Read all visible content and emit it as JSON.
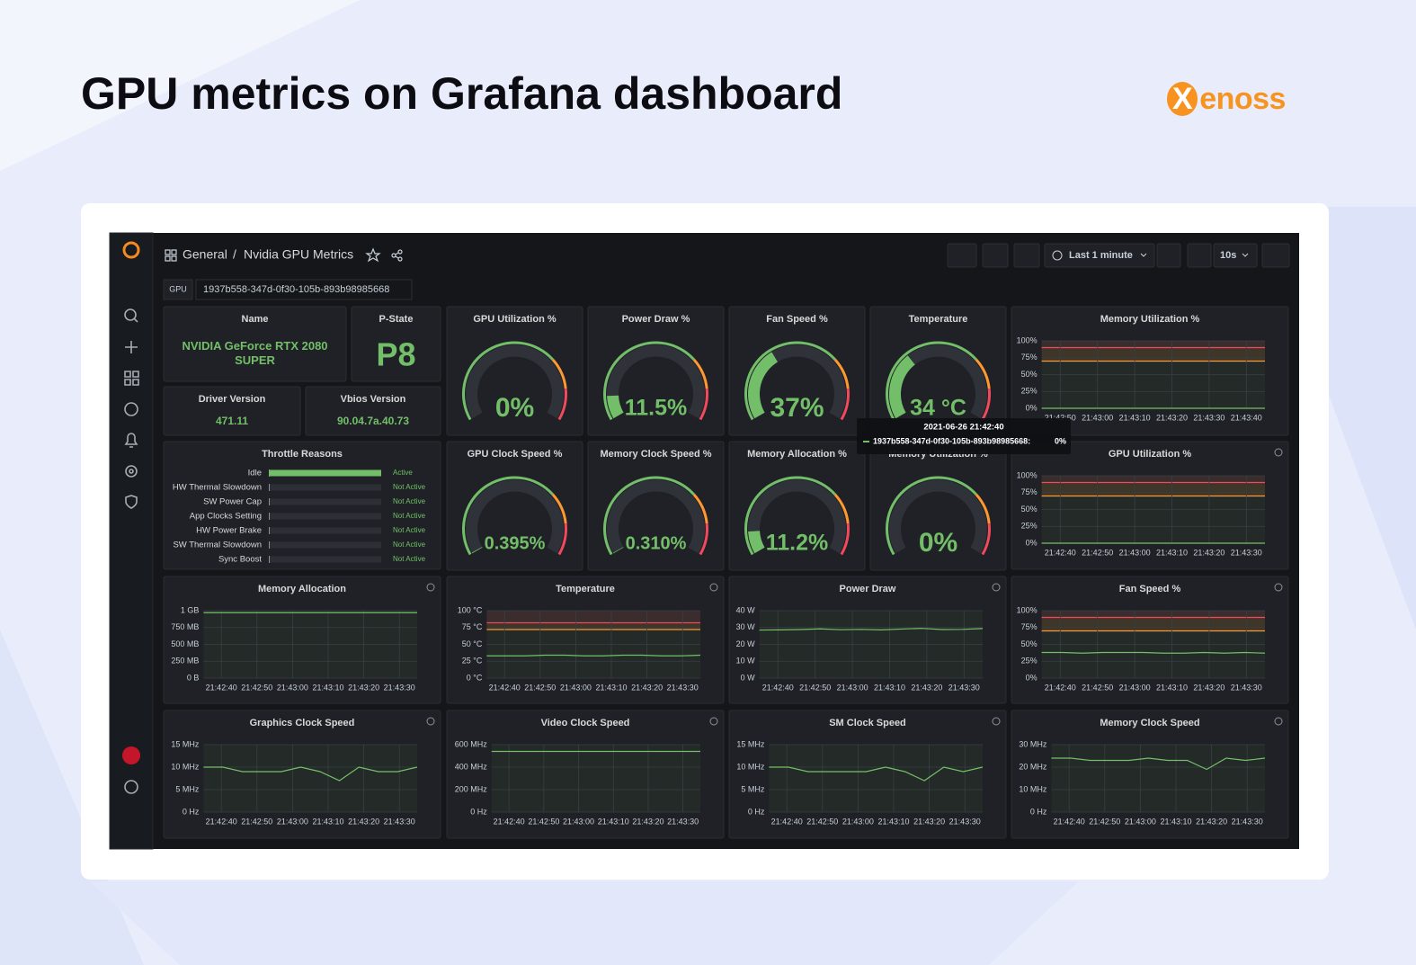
{
  "header": {
    "title": "GPU metrics on Grafana dashboard",
    "brand": "Xenoss"
  },
  "toolbar": {
    "breadcrumb": [
      "General",
      "/",
      "Nvidia GPU Metrics"
    ],
    "time_range": "Last 1 minute",
    "refresh": "10s"
  },
  "variable": {
    "label": "GPU",
    "value": "1937b558-347d-0f30-105b-893b98985668"
  },
  "series_color": "#73bf69",
  "stats": [
    {
      "title": "Name",
      "value": "NVIDIA GeForce RTX 2080 SUPER"
    },
    {
      "title": "P-State",
      "value": "P8"
    },
    {
      "title": "Driver Version",
      "value": "471.11"
    },
    {
      "title": "Vbios Version",
      "value": "90.04.7a.40.73"
    }
  ],
  "gauge_range": [
    0,
    100
  ],
  "gauge_thresholds": [
    {
      "value": 70,
      "color": "#ff9830"
    },
    {
      "value": 85,
      "color": "#f2495c"
    }
  ],
  "gauges": [
    {
      "title": "GPU Utilization %",
      "value": 0,
      "label": "0%"
    },
    {
      "title": "Power Draw %",
      "value": 11.5,
      "label": "11.5%"
    },
    {
      "title": "Fan Speed %",
      "value": 37,
      "label": "37%"
    },
    {
      "title": "Temperature",
      "value": 34,
      "label": "34 °C"
    },
    {
      "title": "GPU Clock Speed %",
      "value": 0.395,
      "label": "0.395%"
    },
    {
      "title": "Memory Clock Speed %",
      "value": 0.31,
      "label": "0.310%"
    },
    {
      "title": "Memory Allocation %",
      "value": 11.2,
      "label": "11.2%"
    },
    {
      "title": "Memory Utilization %",
      "value": 0,
      "label": "0%"
    }
  ],
  "throttle": {
    "title": "Throttle Reasons",
    "range": [
      0,
      1
    ],
    "rows": [
      {
        "name": "Idle",
        "status": "Active",
        "value": 1
      },
      {
        "name": "HW Thermal Slowdown",
        "status": "Not Active",
        "value": 0
      },
      {
        "name": "SW Power Cap",
        "status": "Not Active",
        "value": 0
      },
      {
        "name": "App Clocks Setting",
        "status": "Not Active",
        "value": 0
      },
      {
        "name": "HW Power Brake",
        "status": "Not Active",
        "value": 0
      },
      {
        "name": "SW Thermal Slowdown",
        "status": "Not Active",
        "value": 0
      },
      {
        "name": "Sync Boost",
        "status": "Not Active",
        "value": 0
      }
    ]
  },
  "tooltip": {
    "time": "2021-06-26 21:42:40",
    "series": "1937b558-347d-0f30-105b-893b98985668:",
    "value": "0%"
  },
  "graphs": [
    {
      "title": "Memory Utilization %",
      "ylim": [
        0,
        100
      ],
      "yticks": [
        {
          "value": 0,
          "label": "0%"
        },
        {
          "value": 25,
          "label": "25%"
        },
        {
          "value": 50,
          "label": "50%"
        },
        {
          "value": 75,
          "label": "75%"
        },
        {
          "value": 100,
          "label": "100%"
        }
      ],
      "xticks": [
        "21:42:50",
        "21:43:00",
        "21:43:10",
        "21:43:20",
        "21:43:30",
        "21:43:40"
      ],
      "values": [
        0,
        0,
        0,
        0,
        0,
        0,
        0,
        0,
        0,
        0,
        0,
        0
      ],
      "thresholds": [
        {
          "value": 70,
          "color": "#ff9830"
        },
        {
          "value": 90,
          "color": "#f2495c"
        }
      ]
    },
    {
      "title": "GPU Utilization %",
      "ylim": [
        0,
        100
      ],
      "yticks": [
        {
          "value": 0,
          "label": "0%"
        },
        {
          "value": 25,
          "label": "25%"
        },
        {
          "value": 50,
          "label": "50%"
        },
        {
          "value": 75,
          "label": "75%"
        },
        {
          "value": 100,
          "label": "100%"
        }
      ],
      "xticks": [
        "21:42:40",
        "21:42:50",
        "21:43:00",
        "21:43:10",
        "21:43:20",
        "21:43:30"
      ],
      "values": [
        0,
        0,
        0,
        0,
        0,
        0,
        0,
        0,
        0,
        0,
        0,
        0
      ],
      "thresholds": [
        {
          "value": 70,
          "color": "#ff9830"
        },
        {
          "value": 90,
          "color": "#f2495c"
        }
      ]
    },
    {
      "title": "Memory Allocation",
      "ylim": [
        0,
        1000
      ],
      "yticks": [
        {
          "value": 0,
          "label": "0 B"
        },
        {
          "value": 250,
          "label": "250 MB"
        },
        {
          "value": 500,
          "label": "500 MB"
        },
        {
          "value": 750,
          "label": "750 MB"
        },
        {
          "value": 1000,
          "label": "1 GB"
        }
      ],
      "xticks": [
        "21:42:40",
        "21:42:50",
        "21:43:00",
        "21:43:10",
        "21:43:20",
        "21:43:30"
      ],
      "values": [
        970,
        970,
        970,
        970,
        970,
        970,
        970,
        970,
        970,
        970,
        970,
        970
      ]
    },
    {
      "title": "Temperature",
      "ylim": [
        0,
        100
      ],
      "yticks": [
        {
          "value": 0,
          "label": "0 °C"
        },
        {
          "value": 25,
          "label": "25 °C"
        },
        {
          "value": 50,
          "label": "50 °C"
        },
        {
          "value": 75,
          "label": "75 °C"
        },
        {
          "value": 100,
          "label": "100 °C"
        }
      ],
      "xticks": [
        "21:42:40",
        "21:42:50",
        "21:43:00",
        "21:43:10",
        "21:43:20",
        "21:43:30"
      ],
      "values": [
        33,
        33,
        33,
        34,
        34,
        33,
        33,
        34,
        34,
        33,
        33,
        34
      ],
      "thresholds": [
        {
          "value": 72,
          "color": "#ff9830"
        },
        {
          "value": 82,
          "color": "#f2495c"
        }
      ]
    },
    {
      "title": "Power Draw",
      "ylim": [
        0,
        40
      ],
      "yticks": [
        {
          "value": 0,
          "label": "0 W"
        },
        {
          "value": 10,
          "label": "10 W"
        },
        {
          "value": 20,
          "label": "20 W"
        },
        {
          "value": 30,
          "label": "30 W"
        },
        {
          "value": 40,
          "label": "40 W"
        }
      ],
      "xticks": [
        "21:42:40",
        "21:42:50",
        "21:43:00",
        "21:43:10",
        "21:43:20",
        "21:43:30"
      ],
      "values": [
        28.5,
        28.6,
        28.8,
        29.2,
        28.7,
        28.9,
        28.6,
        29.1,
        29.5,
        28.8,
        28.9,
        29.4
      ]
    },
    {
      "title": "Fan Speed %",
      "ylim": [
        0,
        100
      ],
      "yticks": [
        {
          "value": 0,
          "label": "0%"
        },
        {
          "value": 25,
          "label": "25%"
        },
        {
          "value": 50,
          "label": "50%"
        },
        {
          "value": 75,
          "label": "75%"
        },
        {
          "value": 100,
          "label": "100%"
        }
      ],
      "xticks": [
        "21:42:40",
        "21:42:50",
        "21:43:00",
        "21:43:10",
        "21:43:20",
        "21:43:30"
      ],
      "values": [
        38,
        38,
        37,
        38,
        38,
        38,
        37,
        37,
        38,
        37,
        38,
        37
      ],
      "thresholds": [
        {
          "value": 70,
          "color": "#ff9830"
        },
        {
          "value": 90,
          "color": "#f2495c"
        }
      ]
    },
    {
      "title": "Graphics Clock Speed",
      "ylim": [
        0,
        15
      ],
      "yticks": [
        {
          "value": 0,
          "label": "0 Hz"
        },
        {
          "value": 5,
          "label": "5 MHz"
        },
        {
          "value": 10,
          "label": "10 MHz"
        },
        {
          "value": 15,
          "label": "15 MHz"
        }
      ],
      "xticks": [
        "21:42:40",
        "21:42:50",
        "21:43:00",
        "21:43:10",
        "21:43:20",
        "21:43:30"
      ],
      "values": [
        10,
        10,
        9,
        9,
        9,
        10,
        9,
        7,
        10,
        9,
        9,
        10
      ]
    },
    {
      "title": "Video Clock Speed",
      "ylim": [
        0,
        600
      ],
      "yticks": [
        {
          "value": 0,
          "label": "0 Hz"
        },
        {
          "value": 200,
          "label": "200 MHz"
        },
        {
          "value": 400,
          "label": "400 MHz"
        },
        {
          "value": 600,
          "label": "600 MHz"
        }
      ],
      "xticks": [
        "21:42:40",
        "21:42:50",
        "21:43:00",
        "21:43:10",
        "21:43:20",
        "21:43:30"
      ],
      "values": [
        540,
        540,
        540,
        540,
        540,
        540,
        540,
        540,
        540,
        540,
        540,
        540
      ]
    },
    {
      "title": "SM Clock Speed",
      "ylim": [
        0,
        15
      ],
      "yticks": [
        {
          "value": 0,
          "label": "0 Hz"
        },
        {
          "value": 5,
          "label": "5 MHz"
        },
        {
          "value": 10,
          "label": "10 MHz"
        },
        {
          "value": 15,
          "label": "15 MHz"
        }
      ],
      "xticks": [
        "21:42:40",
        "21:42:50",
        "21:43:00",
        "21:43:10",
        "21:43:20",
        "21:43:30"
      ],
      "values": [
        10,
        10,
        9,
        9,
        9,
        9,
        10,
        9,
        7,
        10,
        9,
        10
      ]
    },
    {
      "title": "Memory Clock Speed",
      "ylim": [
        0,
        30
      ],
      "yticks": [
        {
          "value": 0,
          "label": "0 Hz"
        },
        {
          "value": 10,
          "label": "10 MHz"
        },
        {
          "value": 20,
          "label": "20 MHz"
        },
        {
          "value": 30,
          "label": "30 MHz"
        }
      ],
      "xticks": [
        "21:42:40",
        "21:42:50",
        "21:43:00",
        "21:43:10",
        "21:43:20",
        "21:43:30"
      ],
      "values": [
        24,
        24,
        23,
        23,
        23,
        24,
        23,
        23,
        19,
        24,
        23,
        24
      ]
    }
  ]
}
